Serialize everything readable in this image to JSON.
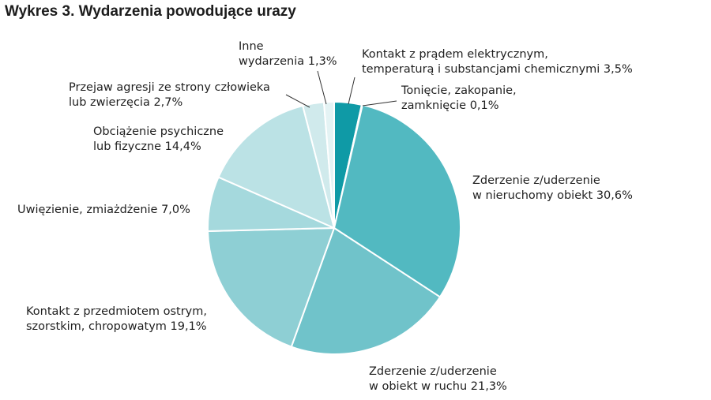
{
  "chart_data": {
    "type": "pie",
    "title": "Wykres 3. Wydarzenia powodujące urazy",
    "unit": "%",
    "slices": [
      {
        "label_lines": [
          "Kontakt z prądem elektrycznym,",
          "temperaturą i substancjami chemicznymi 3,5%"
        ],
        "value": 3.5,
        "color": "#0f9aa6"
      },
      {
        "label_lines": [
          "Tonięcie, zakopanie,",
          "zamknięcie 0,1%"
        ],
        "value": 0.1,
        "color": "#2fa7b1"
      },
      {
        "label_lines": [
          "Zderzenie z/uderzenie",
          "w nieruchomy obiekt 30,6%"
        ],
        "value": 30.6,
        "color": "#52b9c1"
      },
      {
        "label_lines": [
          "Zderzenie z/uderzenie",
          "w obiekt w ruchu 21,3%"
        ],
        "value": 21.3,
        "color": "#70c3ca"
      },
      {
        "label_lines": [
          "Kontakt z przedmiotem ostrym,",
          "szorstkim, chropowatym 19,1%"
        ],
        "value": 19.1,
        "color": "#8ecfd4"
      },
      {
        "label_lines": [
          "Uwięzienie, zmiażdżenie 7,0%"
        ],
        "value": 7.0,
        "color": "#a5d9dd"
      },
      {
        "label_lines": [
          "Obciążenie psychiczne",
          "lub fizyczne 14,4%"
        ],
        "value": 14.4,
        "color": "#bbe2e5"
      },
      {
        "label_lines": [
          "Przejaw agresji ze strony człowieka",
          "lub zwierzęcia 2,7%"
        ],
        "value": 2.7,
        "color": "#d0eaec"
      },
      {
        "label_lines": [
          "Inne",
          "wydarzenia 1,3%"
        ],
        "value": 1.3,
        "color": "#e4f3f4"
      }
    ]
  }
}
